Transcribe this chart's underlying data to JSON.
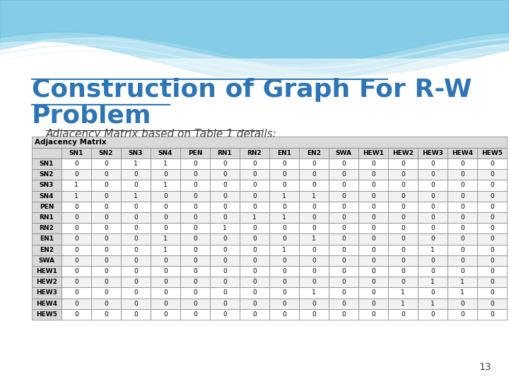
{
  "title_line1": "Construction of Graph For R-W",
  "title_line2": "Problem",
  "subtitle": "Adjacency Matrix based on Table 1 details:",
  "title_color": "#2E75B6",
  "subtitle_color": "#404040",
  "page_number": "13",
  "header_label": "Adjacency Matrix",
  "col_labels": [
    "",
    "SN1",
    "SN2",
    "SN3",
    "SN4",
    "PEN",
    "RN1",
    "RN2",
    "EN1",
    "EN2",
    "SWA",
    "HEW1",
    "HEW2",
    "HEW3",
    "HEW4",
    "HEW5"
  ],
  "row_labels": [
    "SN1",
    "SN2",
    "SN3",
    "SN4",
    "PEN",
    "RN1",
    "RN2",
    "EN1",
    "EN2",
    "SWA",
    "HEW1",
    "HEW2",
    "HEW3",
    "HEW4",
    "HEW5"
  ],
  "matrix": [
    [
      0,
      0,
      1,
      1,
      0,
      0,
      0,
      0,
      0,
      0,
      0,
      0,
      0,
      0,
      0
    ],
    [
      0,
      0,
      0,
      0,
      0,
      0,
      0,
      0,
      0,
      0,
      0,
      0,
      0,
      0,
      0
    ],
    [
      1,
      0,
      0,
      1,
      0,
      0,
      0,
      0,
      0,
      0,
      0,
      0,
      0,
      0,
      0
    ],
    [
      1,
      0,
      1,
      0,
      0,
      0,
      0,
      1,
      1,
      0,
      0,
      0,
      0,
      0,
      0
    ],
    [
      0,
      0,
      0,
      0,
      0,
      0,
      0,
      0,
      0,
      0,
      0,
      0,
      0,
      0,
      0
    ],
    [
      0,
      0,
      0,
      0,
      0,
      0,
      1,
      1,
      0,
      0,
      0,
      0,
      0,
      0,
      0
    ],
    [
      0,
      0,
      0,
      0,
      0,
      1,
      0,
      0,
      0,
      0,
      0,
      0,
      0,
      0,
      0
    ],
    [
      0,
      0,
      0,
      1,
      0,
      0,
      0,
      0,
      1,
      0,
      0,
      0,
      0,
      0,
      0
    ],
    [
      0,
      0,
      0,
      1,
      0,
      0,
      0,
      1,
      0,
      0,
      0,
      0,
      1,
      0,
      0
    ],
    [
      0,
      0,
      0,
      0,
      0,
      0,
      0,
      0,
      0,
      0,
      0,
      0,
      0,
      0,
      0
    ],
    [
      0,
      0,
      0,
      0,
      0,
      0,
      0,
      0,
      0,
      0,
      0,
      0,
      0,
      0,
      0
    ],
    [
      0,
      0,
      0,
      0,
      0,
      0,
      0,
      0,
      0,
      0,
      0,
      0,
      1,
      1,
      0
    ],
    [
      0,
      0,
      0,
      0,
      0,
      0,
      0,
      0,
      1,
      0,
      0,
      1,
      0,
      1,
      0
    ],
    [
      0,
      0,
      0,
      0,
      0,
      0,
      0,
      0,
      0,
      0,
      0,
      1,
      1,
      0,
      0
    ],
    [
      0,
      0,
      0,
      0,
      0,
      0,
      0,
      0,
      0,
      0,
      0,
      0,
      0,
      0,
      0
    ]
  ],
  "bg_color": "#FFFFFF",
  "table_header_bg": "#D9D9D9",
  "table_row_odd": "#FFFFFF",
  "table_row_even": "#F2F2F2",
  "table_border_color": "#808080",
  "table_header_font_size": 6.5,
  "table_cell_font_size": 6.5,
  "title_font_size": 26,
  "subtitle_font_size": 11
}
